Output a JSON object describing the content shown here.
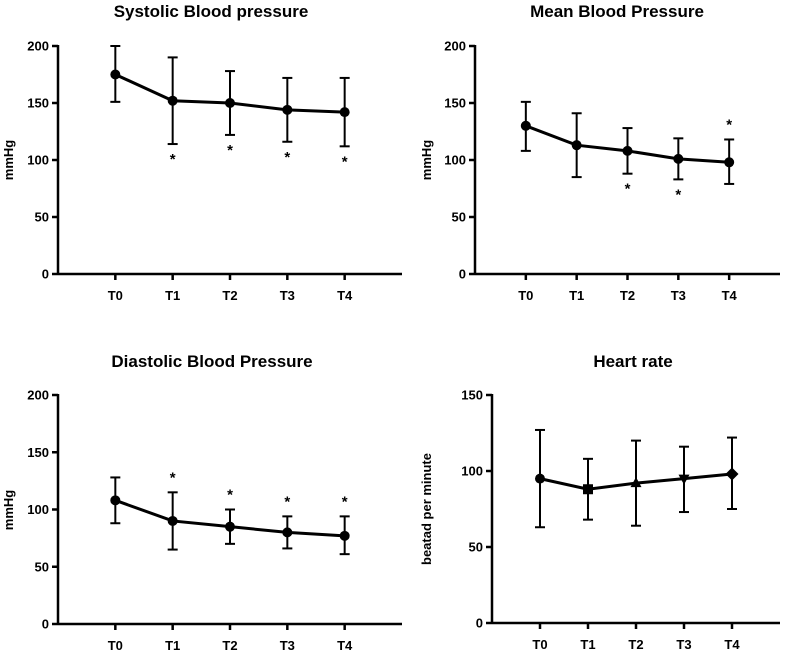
{
  "chart_data": [
    {
      "type": "line",
      "title": "Systolic Blood pressure",
      "ylabel": "mmHg",
      "categories": [
        "T0",
        "T1",
        "T2",
        "T3",
        "T4"
      ],
      "values": [
        175,
        152,
        150,
        144,
        142
      ],
      "err_low": [
        151,
        114,
        122,
        116,
        112
      ],
      "err_high": [
        200,
        190,
        178,
        172,
        172
      ],
      "significant": [
        false,
        true,
        true,
        true,
        true
      ],
      "star_label": "*",
      "ylim": [
        0,
        200
      ],
      "yticks": [
        0,
        50,
        100,
        150,
        200
      ],
      "marker": "circle",
      "grid": false
    },
    {
      "type": "line",
      "title": "Mean Blood Pressure",
      "ylabel": "mmHg",
      "categories": [
        "T0",
        "T1",
        "T2",
        "T3",
        "T4"
      ],
      "values": [
        130,
        113,
        108,
        101,
        98
      ],
      "err_low": [
        108,
        85,
        88,
        83,
        79
      ],
      "err_high": [
        151,
        141,
        128,
        119,
        118
      ],
      "significant": [
        false,
        false,
        true,
        true,
        true
      ],
      "star_label": "*",
      "ylim": [
        0,
        200
      ],
      "yticks": [
        0,
        50,
        100,
        150,
        200
      ],
      "marker": "circle",
      "grid": false
    },
    {
      "type": "line",
      "title": "Diastolic Blood Pressure",
      "ylabel": "mmHg",
      "categories": [
        "T0",
        "T1",
        "T2",
        "T3",
        "T4"
      ],
      "values": [
        108,
        90,
        85,
        80,
        77
      ],
      "err_low": [
        88,
        65,
        70,
        66,
        61
      ],
      "err_high": [
        128,
        115,
        100,
        94,
        94
      ],
      "significant": [
        false,
        true,
        true,
        true,
        true
      ],
      "star_label": "*",
      "ylim": [
        0,
        200
      ],
      "yticks": [
        0,
        50,
        100,
        150,
        200
      ],
      "marker": "circle",
      "grid": false
    },
    {
      "type": "line",
      "title": "Heart rate",
      "ylabel": "beatad per minute",
      "categories": [
        "T0",
        "T1",
        "T2",
        "T3",
        "T4"
      ],
      "values": [
        95,
        88,
        92,
        95,
        98
      ],
      "err_low": [
        63,
        68,
        64,
        73,
        75
      ],
      "err_high": [
        127,
        108,
        120,
        116,
        122
      ],
      "significant": [
        false,
        false,
        false,
        false,
        false
      ],
      "star_label": "*",
      "ylim": [
        0,
        150
      ],
      "yticks": [
        0,
        50,
        100,
        150
      ],
      "markers": [
        "circle",
        "square",
        "triangle-up",
        "triangle-down",
        "diamond"
      ],
      "grid": false
    }
  ]
}
